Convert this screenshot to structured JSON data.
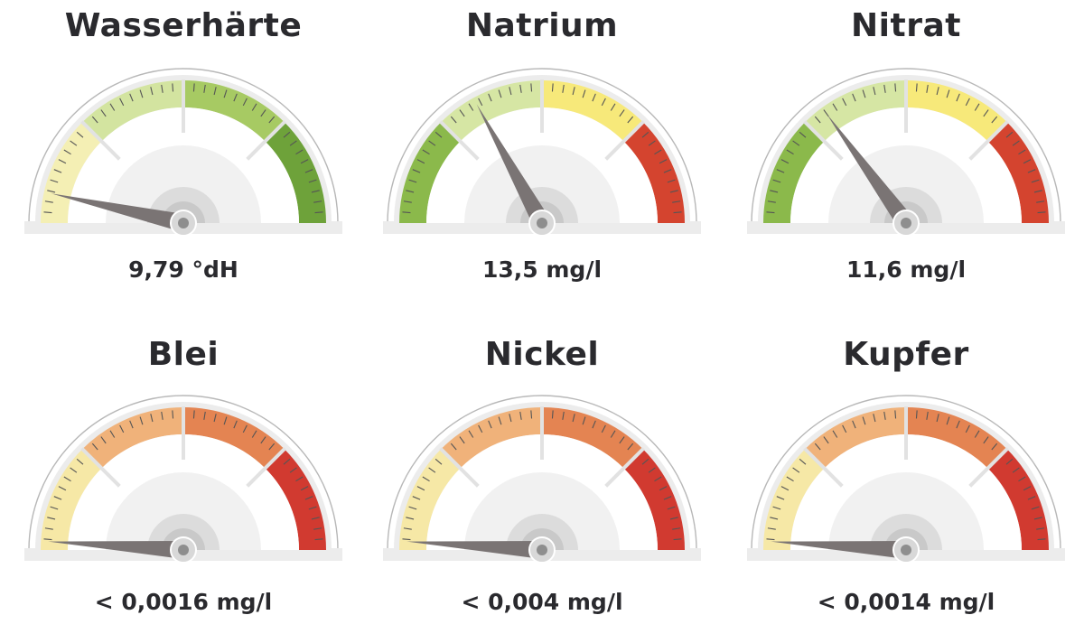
{
  "gauges": [
    {
      "title": "Wasserhärte",
      "value": "9,79 °dH",
      "scheme": "green_high",
      "level": 0.07
    },
    {
      "title": "Natrium",
      "value": "13,5 mg/l",
      "scheme": "green_low",
      "level": 0.34
    },
    {
      "title": "Nitrat",
      "value": "11,6 mg/l",
      "scheme": "green_low",
      "level": 0.3
    },
    {
      "title": "Blei",
      "value": "< 0,0016 mg/l",
      "scheme": "warning",
      "level": 0.02
    },
    {
      "title": "Nickel",
      "value": "< 0,004 mg/l",
      "scheme": "warning",
      "level": 0.02
    },
    {
      "title": "Kupfer",
      "value": "< 0,0014 mg/l",
      "scheme": "warning",
      "level": 0.02
    }
  ],
  "color_schemes": {
    "green_high": [
      "#f4efb4",
      "#d3e4a0",
      "#a7ca63",
      "#6ea23a"
    ],
    "green_low": [
      "#8bb94b",
      "#d6e6a4",
      "#f7e97a",
      "#d4442f"
    ],
    "warning": [
      "#f6e8a6",
      "#f0b27a",
      "#e48452",
      "#d13a30"
    ]
  }
}
